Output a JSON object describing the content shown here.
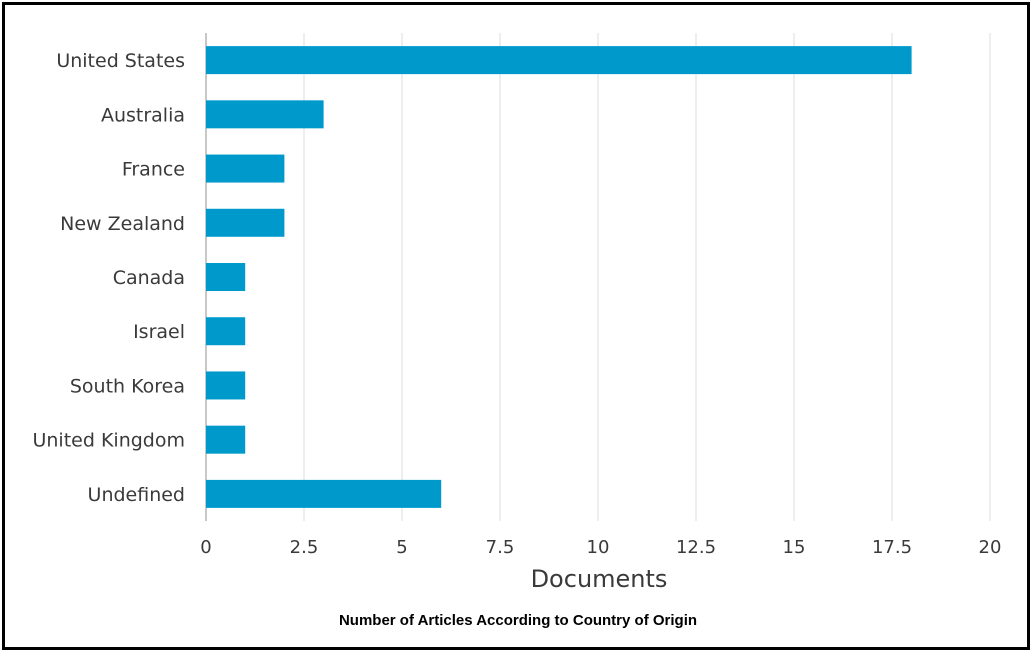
{
  "chart_data": {
    "type": "bar",
    "orientation": "horizontal",
    "categories": [
      "United States",
      "Australia",
      "France",
      "New Zealand",
      "Canada",
      "Israel",
      "South Korea",
      "United Kingdom",
      "Undefined"
    ],
    "values": [
      18,
      3,
      2,
      2,
      1,
      1,
      1,
      1,
      6
    ],
    "xlabel": "Documents",
    "ylabel": "",
    "xlim": [
      0,
      20
    ],
    "xticks": [
      "0",
      "2.5",
      "5",
      "7.5",
      "10",
      "12.5",
      "15",
      "17.5",
      "20"
    ],
    "grid": "vertical",
    "bar_color": "#0099cc",
    "caption": "Number of Articles According to Country of Origin"
  }
}
